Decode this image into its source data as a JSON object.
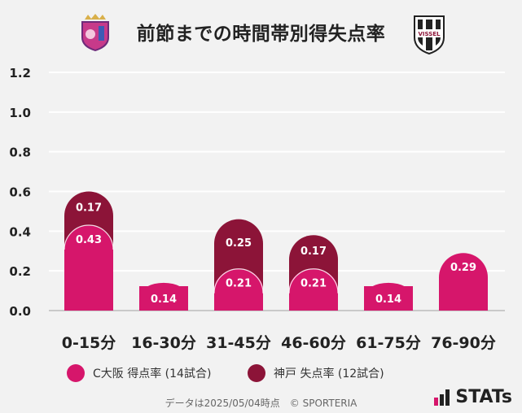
{
  "title": "前節までの時間帯別得失点率",
  "chart_data": {
    "type": "bar",
    "stacked": true,
    "categories": [
      "0-15分",
      "16-30分",
      "31-45分",
      "46-60分",
      "61-75分",
      "76-90分"
    ],
    "series": [
      {
        "name": "C大阪 得点率 (14試合)",
        "values": [
          0.43,
          0.14,
          0.21,
          0.21,
          0.14,
          0.29
        ],
        "color": "#d6166b"
      },
      {
        "name": "神戸 失点率 (12試合)",
        "values": [
          0.17,
          0,
          0.25,
          0.17,
          0,
          0
        ],
        "color": "#8c1438"
      }
    ],
    "yticks": [
      "0.0",
      "0.2",
      "0.4",
      "0.6",
      "0.8",
      "1.0",
      "1.2"
    ],
    "ylim": [
      0,
      1.2
    ],
    "grid": true,
    "legend": "bottom"
  },
  "legend": {
    "item1": "C大阪 得点率 (14試合)",
    "item2": "神戸 失点率 (12試合)"
  },
  "footer": "データは2025/05/04時点　© SPORTERIA",
  "brand": "STATs",
  "logos": {
    "left": "cerezo-osaka-crest",
    "right": "vissel-kobe-crest",
    "right_text": "VISSEL"
  }
}
